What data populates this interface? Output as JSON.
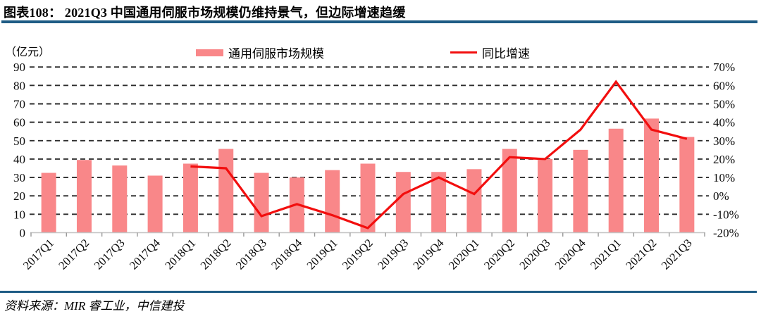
{
  "header": {
    "title": "图表108：  2021Q3 中国通用伺服市场规模仍维持景气，但边际增速趋缓"
  },
  "footer": {
    "source": "资料来源：MIR 睿工业，中信建投"
  },
  "colors": {
    "bar": "#F98789",
    "line": "#F20E0E",
    "rule": "#1F5C85",
    "grid": "#2E2E2E",
    "baseline": "#C4C4C4",
    "tick": "#999999",
    "text": "#0A0A0A"
  },
  "chart_data": {
    "type": "bar+line",
    "categories": [
      "2017Q1",
      "2017Q2",
      "2017Q3",
      "2017Q4",
      "2018Q1",
      "2018Q2",
      "2018Q3",
      "2018Q4",
      "2019Q1",
      "2019Q2",
      "2019Q3",
      "2019Q4",
      "2020Q1",
      "2020Q2",
      "2020Q3",
      "2020Q4",
      "2021Q1",
      "2021Q2",
      "2021Q3"
    ],
    "series": [
      {
        "name": "通用伺服市场规模",
        "type": "bar",
        "axis": "left",
        "unit": "亿元",
        "values": [
          32.5,
          39.5,
          36.5,
          31,
          37.5,
          45.5,
          32.5,
          30,
          34,
          37.5,
          33,
          33,
          34.5,
          45.5,
          40,
          45,
          56.5,
          62,
          52
        ]
      },
      {
        "name": "同比增速",
        "type": "line",
        "axis": "right",
        "unit": "%",
        "values": [
          null,
          null,
          null,
          null,
          16,
          15,
          -11,
          -4.5,
          -10.5,
          -17.5,
          1,
          10,
          1,
          21,
          20,
          36,
          62,
          36,
          31
        ]
      }
    ],
    "left_axis": {
      "title": "（亿元）",
      "min": 0,
      "max": 90,
      "step": 10
    },
    "right_axis": {
      "min": -20,
      "max": 70,
      "step": 10,
      "suffix": "%"
    },
    "grid": "horizontal-dashed",
    "legend_position": "top"
  }
}
